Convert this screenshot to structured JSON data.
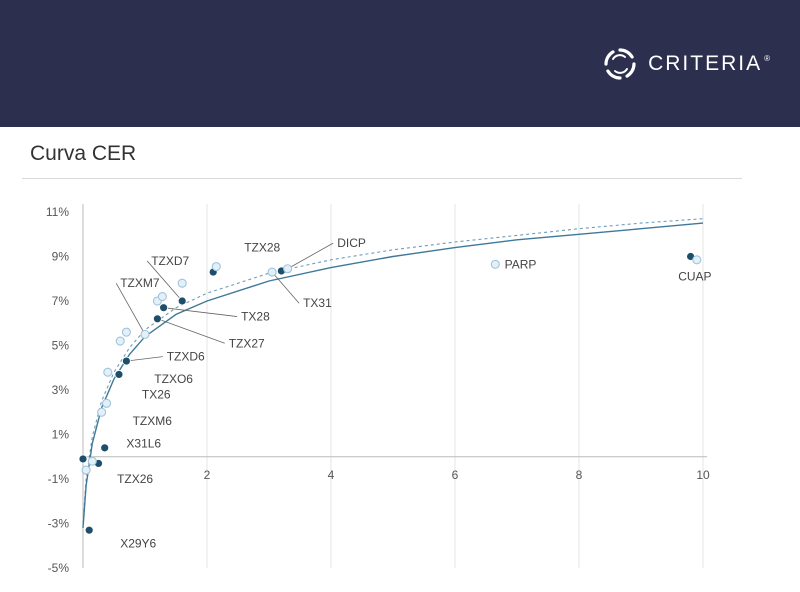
{
  "header": {
    "brand_name": "CRITERIA",
    "brand_reg": "®",
    "logo_icon": "criteria-ring-logo-icon"
  },
  "page_title": "Curva CER",
  "colors": {
    "banner": "#2d2f4f",
    "dark_point": "#1f4e6b",
    "light_point": "#9fc4dc",
    "curve": "#3f7898",
    "grid": "#e6e6e6"
  },
  "chart_data": {
    "type": "scatter",
    "title": "Curva CER",
    "xlabel": "",
    "ylabel": "",
    "xlim": [
      0,
      10
    ],
    "ylim": [
      -5,
      11
    ],
    "x_ticks": [
      "2",
      "4",
      "6",
      "8",
      "10"
    ],
    "x_tick_values": [
      2,
      4,
      6,
      8,
      10
    ],
    "y_ticks": [
      "11%",
      "9%",
      "7%",
      "5%",
      "3%",
      "1%",
      "-1%",
      "-3%",
      "-5%"
    ],
    "y_tick_values": [
      11,
      9,
      7,
      5,
      3,
      1,
      -1,
      -3,
      -5
    ],
    "grid": "vertical",
    "series": [
      {
        "style": "dark",
        "points": [
          {
            "x": 0.0,
            "y": -0.1
          },
          {
            "x": 0.1,
            "y": -3.3
          },
          {
            "x": 0.25,
            "y": -0.3
          },
          {
            "x": 0.35,
            "y": 0.4
          },
          {
            "x": 0.58,
            "y": 3.7
          },
          {
            "x": 0.7,
            "y": 4.3
          },
          {
            "x": 1.2,
            "y": 6.2
          },
          {
            "x": 1.3,
            "y": 6.7
          },
          {
            "x": 1.6,
            "y": 7.0
          },
          {
            "x": 2.1,
            "y": 8.3
          },
          {
            "x": 3.2,
            "y": 8.35
          },
          {
            "x": 9.8,
            "y": 9.0
          }
        ]
      },
      {
        "style": "light",
        "points": [
          {
            "x": 0.05,
            "y": -0.6
          },
          {
            "x": 0.15,
            "y": -0.2
          },
          {
            "x": 0.3,
            "y": 2.0
          },
          {
            "x": 0.38,
            "y": 2.4
          },
          {
            "x": 0.4,
            "y": 3.8
          },
          {
            "x": 0.6,
            "y": 5.2
          },
          {
            "x": 0.7,
            "y": 5.6
          },
          {
            "x": 1.0,
            "y": 5.5
          },
          {
            "x": 1.2,
            "y": 7.0
          },
          {
            "x": 1.28,
            "y": 7.2
          },
          {
            "x": 1.6,
            "y": 7.8
          },
          {
            "x": 2.15,
            "y": 8.55
          },
          {
            "x": 3.05,
            "y": 8.3
          },
          {
            "x": 3.3,
            "y": 8.45
          },
          {
            "x": 6.65,
            "y": 8.65
          },
          {
            "x": 9.9,
            "y": 8.85
          }
        ]
      }
    ],
    "fit_solid": [
      {
        "x": 0.0,
        "y": -3.2
      },
      {
        "x": 0.05,
        "y": -1.3
      },
      {
        "x": 0.15,
        "y": 0.6
      },
      {
        "x": 0.3,
        "y": 2.2
      },
      {
        "x": 0.5,
        "y": 3.5
      },
      {
        "x": 0.75,
        "y": 4.6
      },
      {
        "x": 1.0,
        "y": 5.4
      },
      {
        "x": 1.5,
        "y": 6.4
      },
      {
        "x": 2.0,
        "y": 7.0
      },
      {
        "x": 3.0,
        "y": 7.9
      },
      {
        "x": 4.0,
        "y": 8.5
      },
      {
        "x": 5.0,
        "y": 9.0
      },
      {
        "x": 6.0,
        "y": 9.4
      },
      {
        "x": 7.0,
        "y": 9.75
      },
      {
        "x": 8.0,
        "y": 10.0
      },
      {
        "x": 9.0,
        "y": 10.25
      },
      {
        "x": 10.0,
        "y": 10.5
      }
    ],
    "fit_dashed": [
      {
        "x": 0.0,
        "y": -3.0
      },
      {
        "x": 0.05,
        "y": -1.0
      },
      {
        "x": 0.15,
        "y": 0.9
      },
      {
        "x": 0.3,
        "y": 2.5
      },
      {
        "x": 0.5,
        "y": 3.8
      },
      {
        "x": 0.75,
        "y": 4.9
      },
      {
        "x": 1.0,
        "y": 5.7
      },
      {
        "x": 1.5,
        "y": 6.7
      },
      {
        "x": 2.0,
        "y": 7.35
      },
      {
        "x": 3.0,
        "y": 8.25
      },
      {
        "x": 4.0,
        "y": 8.85
      },
      {
        "x": 5.0,
        "y": 9.3
      },
      {
        "x": 6.0,
        "y": 9.65
      },
      {
        "x": 7.0,
        "y": 9.95
      },
      {
        "x": 8.0,
        "y": 10.25
      },
      {
        "x": 9.0,
        "y": 10.5
      },
      {
        "x": 10.0,
        "y": 10.7
      }
    ],
    "annotations": [
      {
        "text": "TZX28",
        "x": 2.15,
        "y": 8.55,
        "tx": 2.6,
        "ty": 9.4
      },
      {
        "text": "DICP",
        "x": 3.3,
        "y": 8.45,
        "tx": 4.1,
        "ty": 9.6
      },
      {
        "text": "TZXD7",
        "x": 1.6,
        "y": 7.0,
        "tx": 1.1,
        "ty": 8.8
      },
      {
        "text": "TZXM7",
        "x": 1.0,
        "y": 5.5,
        "tx": 0.6,
        "ty": 7.8
      },
      {
        "text": "TX31",
        "x": 3.05,
        "y": 8.3,
        "tx": 3.55,
        "ty": 6.9
      },
      {
        "text": "TX28",
        "x": 1.3,
        "y": 6.7,
        "tx": 2.55,
        "ty": 6.3
      },
      {
        "text": "TZX27",
        "x": 1.2,
        "y": 6.2,
        "tx": 2.35,
        "ty": 5.1
      },
      {
        "text": "TZXD6",
        "x": 0.7,
        "y": 4.3,
        "tx": 1.35,
        "ty": 4.5
      },
      {
        "text": "TZXO6",
        "x": 0.58,
        "y": 3.7,
        "tx": 1.15,
        "ty": 3.5
      },
      {
        "text": "TX26",
        "x": 0.4,
        "y": 2.4,
        "tx": 0.95,
        "ty": 2.8
      },
      {
        "text": "TZXM6",
        "x": 0.3,
        "y": 2.0,
        "tx": 0.8,
        "ty": 1.6
      },
      {
        "text": "X31L6",
        "x": 0.35,
        "y": 0.4,
        "tx": 0.7,
        "ty": 0.6
      },
      {
        "text": "TZX26",
        "x": 0.25,
        "y": -0.3,
        "tx": 0.55,
        "ty": -1.0
      },
      {
        "text": "X29Y6",
        "x": 0.1,
        "y": -3.3,
        "tx": 0.6,
        "ty": -3.9
      },
      {
        "text": "PARP",
        "x": 6.65,
        "y": 8.65,
        "tx": 6.8,
        "ty": 8.65
      },
      {
        "text": "CUAP",
        "x": 9.9,
        "y": 8.85,
        "tx": 9.6,
        "ty": 8.1
      }
    ]
  }
}
